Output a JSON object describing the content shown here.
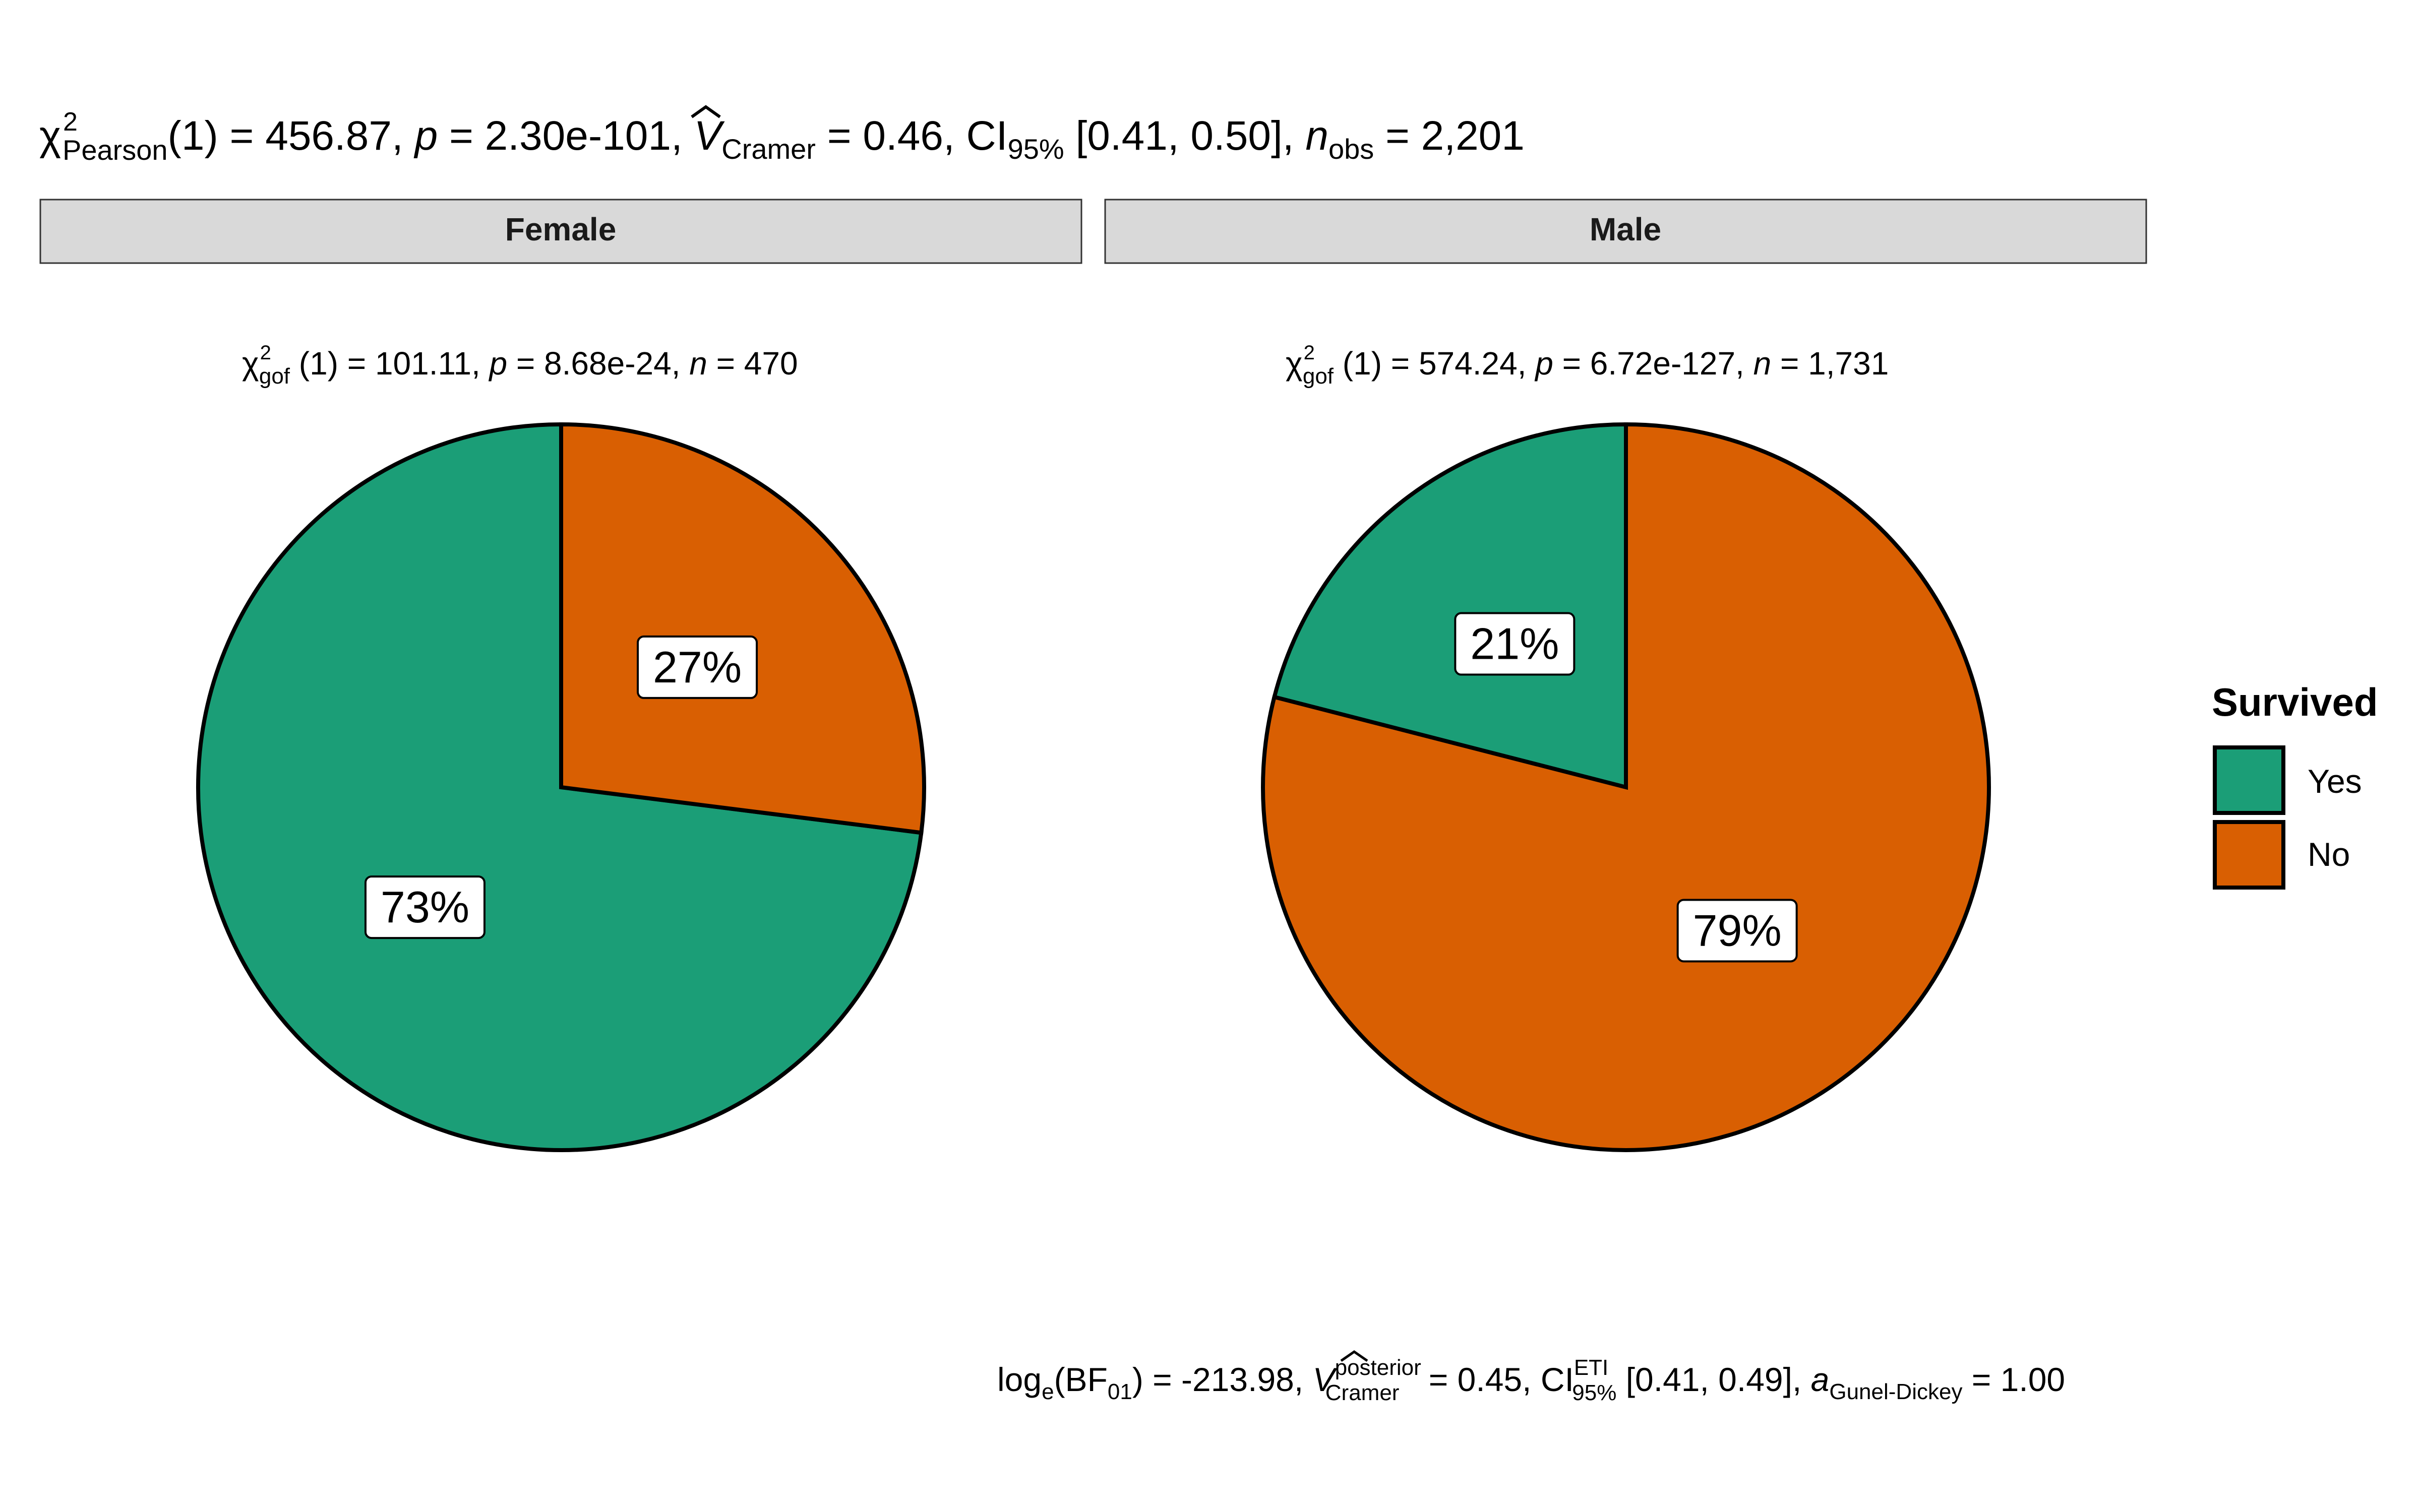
{
  "chart_data": {
    "type": "pie",
    "title_parts": {
      "chi": "χ",
      "sup": "2",
      "sub": "Pearson",
      "df": "(1) = 456.87, ",
      "p_label": "p",
      "p_value": " = 2.30e-101, ",
      "v_label": "V",
      "v_sub": "Cramer",
      "v_value": " = 0.46, CI",
      "ci_sub": "95%",
      "ci_value": " [0.41, 0.50], ",
      "n_label": "n",
      "n_sub": "obs",
      "n_value": " = 2,201"
    },
    "caption_parts": {
      "log": "log",
      "log_sub": "e",
      "bf": "(BF",
      "bf_sub": "01",
      "bf_value": ") = -213.98, ",
      "v_label": "V",
      "v_sup": "posterior",
      "v_sub": "Cramer",
      "v_value": " = 0.45, CI",
      "ci_sup": "ETI",
      "ci_sub": "95%",
      "ci_value": " [0.41, 0.49], ",
      "a_label": "a",
      "a_sub": "Gunel-Dickey",
      "a_value": " = 1.00"
    },
    "legend": {
      "title": "Survived",
      "entries": [
        {
          "label": "Yes",
          "color": "#1b9e77"
        },
        {
          "label": "No",
          "color": "#d95f02"
        }
      ],
      "position": "right"
    },
    "facets": [
      {
        "strip_label": "Female",
        "subtitle_parts": {
          "chi": "χ",
          "sup": "2",
          "sub": "gof",
          "stat": " (1) = 101.11,  ",
          "p_label": "p",
          "p_value": " = 8.68e-24,  ",
          "n_label": "n",
          "n_value": " = 470"
        },
        "slices": [
          {
            "category": "Yes",
            "percent": 73,
            "label": "73%"
          },
          {
            "category": "No",
            "percent": 27,
            "label": "27%"
          }
        ]
      },
      {
        "strip_label": "Male",
        "subtitle_parts": {
          "chi": "χ",
          "sup": "2",
          "sub": "gof",
          "stat": " (1) = 574.24,  ",
          "p_label": "p",
          "p_value": " = 6.72e-127,  ",
          "n_label": "n",
          "n_value": " = 1,731"
        },
        "slices": [
          {
            "category": "Yes",
            "percent": 21,
            "label": "21%"
          },
          {
            "category": "No",
            "percent": 79,
            "label": "79%"
          }
        ]
      }
    ]
  }
}
